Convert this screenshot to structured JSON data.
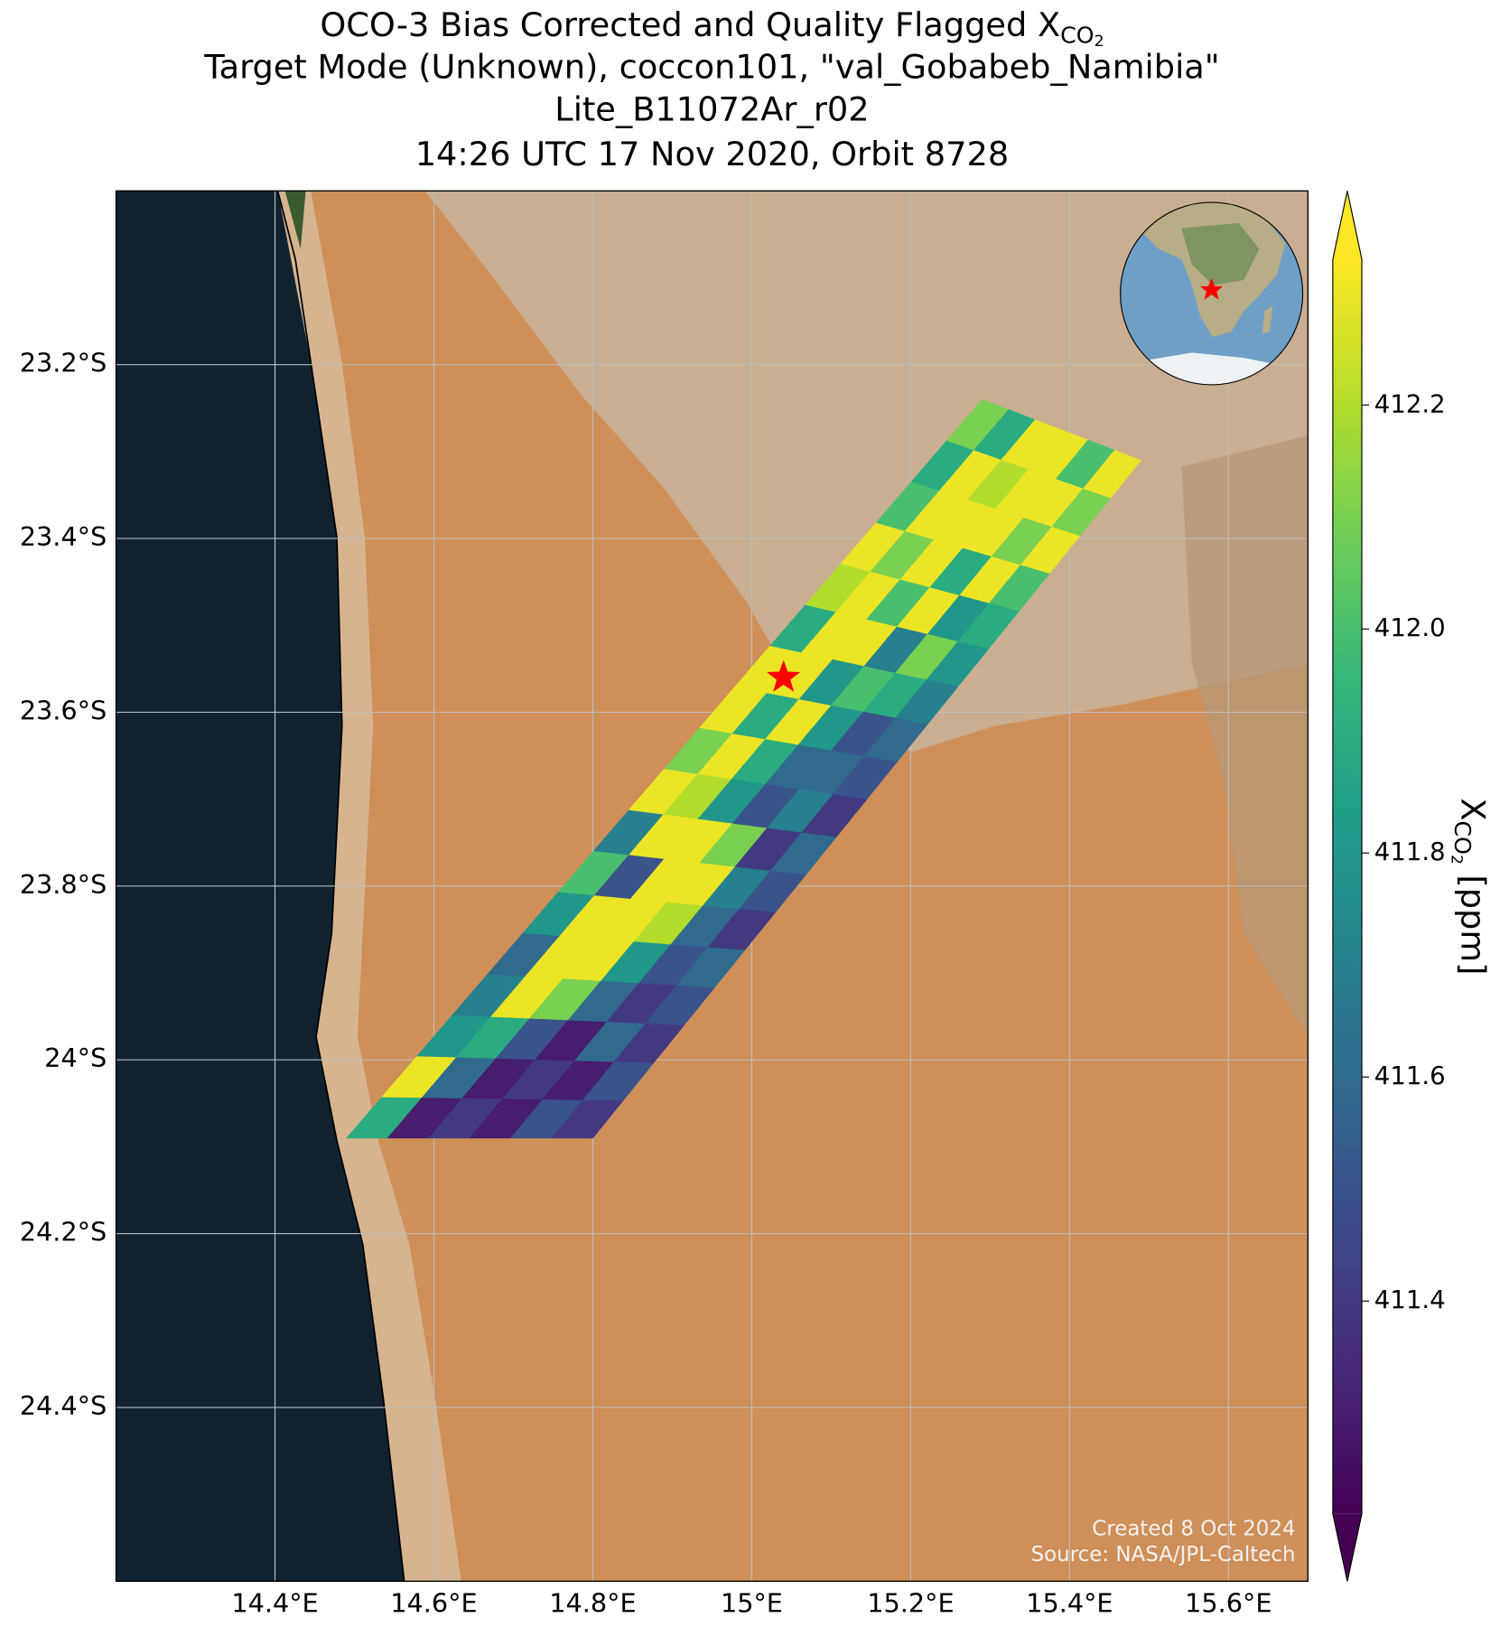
{
  "chart_data": {
    "type": "map",
    "title": {
      "text": "OCO-3 Bias Corrected and Quality Flagged X",
      "sub": "CO",
      "subsub": "2"
    },
    "subtitle": [
      "Target Mode (Unknown), coccon101, \"val_Gobabeb_Namibia\"",
      "Lite_B11072Ar_r02",
      "14:26 UTC 17 Nov 2020, Orbit 8728"
    ],
    "xlim": [
      14.2,
      15.7
    ],
    "ylim": [
      -24.6,
      -23.0
    ],
    "xticks": [
      {
        "value": 14.4,
        "label": "14.4°E"
      },
      {
        "value": 14.6,
        "label": "14.6°E"
      },
      {
        "value": 14.8,
        "label": "14.8°E"
      },
      {
        "value": 15.0,
        "label": "15°E"
      },
      {
        "value": 15.2,
        "label": "15.2°E"
      },
      {
        "value": 15.4,
        "label": "15.4°E"
      },
      {
        "value": 15.6,
        "label": "15.6°E"
      }
    ],
    "yticks": [
      {
        "value": -23.2,
        "label": "23.2°S"
      },
      {
        "value": -23.4,
        "label": "23.4°S"
      },
      {
        "value": -23.6,
        "label": "23.6°S"
      },
      {
        "value": -23.8,
        "label": "23.8°S"
      },
      {
        "value": -24.0,
        "label": "24°S"
      },
      {
        "value": -24.2,
        "label": "24.2°S"
      },
      {
        "value": -24.4,
        "label": "24.4°S"
      }
    ],
    "grid": true,
    "swath": {
      "lon": [
        14.49,
        14.8,
        15.49,
        15.29
      ],
      "lat": [
        -24.09,
        -24.09,
        -23.31,
        -23.24
      ],
      "values": [
        [
          411.9,
          411.3,
          411.4,
          411.3,
          411.5,
          411.4
        ],
        [
          412.3,
          411.6,
          411.3,
          411.4,
          411.3,
          411.5
        ],
        [
          411.8,
          411.9,
          411.5,
          411.3,
          411.6,
          411.4
        ],
        [
          411.7,
          412.3,
          412.1,
          411.6,
          411.4,
          411.5
        ],
        [
          411.6,
          412.3,
          412.3,
          411.8,
          411.5,
          411.6
        ],
        [
          411.8,
          412.3,
          412.3,
          412.2,
          411.6,
          411.4
        ],
        [
          412.0,
          411.5,
          412.3,
          412.3,
          411.7,
          411.5
        ],
        [
          411.7,
          412.3,
          412.3,
          412.1,
          411.4,
          411.6
        ],
        [
          412.3,
          412.2,
          411.8,
          411.5,
          411.7,
          411.4
        ],
        [
          412.1,
          412.3,
          411.9,
          411.6,
          411.6,
          411.5
        ],
        [
          412.3,
          411.9,
          412.3,
          411.8,
          411.5,
          411.6
        ],
        [
          412.3,
          412.3,
          411.8,
          412.0,
          411.9,
          411.7
        ],
        [
          411.9,
          412.3,
          412.3,
          411.7,
          412.1,
          411.8
        ],
        [
          412.2,
          412.3,
          412.0,
          412.3,
          411.8,
          411.9
        ],
        [
          412.3,
          412.1,
          412.3,
          411.9,
          412.3,
          412.0
        ],
        [
          412.0,
          412.3,
          412.3,
          412.3,
          412.1,
          412.3
        ],
        [
          411.9,
          412.3,
          412.2,
          412.3,
          412.3,
          412.1
        ],
        [
          412.1,
          411.9,
          412.3,
          412.3,
          412.0,
          412.3
        ]
      ]
    },
    "site": {
      "lon": 15.04,
      "lat": -23.56,
      "color": "#ff0000"
    },
    "colorbar": {
      "label": {
        "text": "X",
        "sub": "CO",
        "subsub": "2",
        "unit": "[ppm]"
      },
      "clim": [
        411.21,
        412.33
      ],
      "ticks": [
        411.4,
        411.6,
        411.8,
        {
          "value": 412.0,
          "label": "412.0"
        },
        412.2
      ],
      "colormap": [
        "#440154",
        "#482878",
        "#3e4989",
        "#31688e",
        "#26828e",
        "#1f9e89",
        "#35b779",
        "#6ece58",
        "#b5de2b",
        "#fde725"
      ]
    },
    "annotations": [
      "Created 8 Oct 2024",
      "Source: NASA/JPL-Caltech"
    ]
  }
}
